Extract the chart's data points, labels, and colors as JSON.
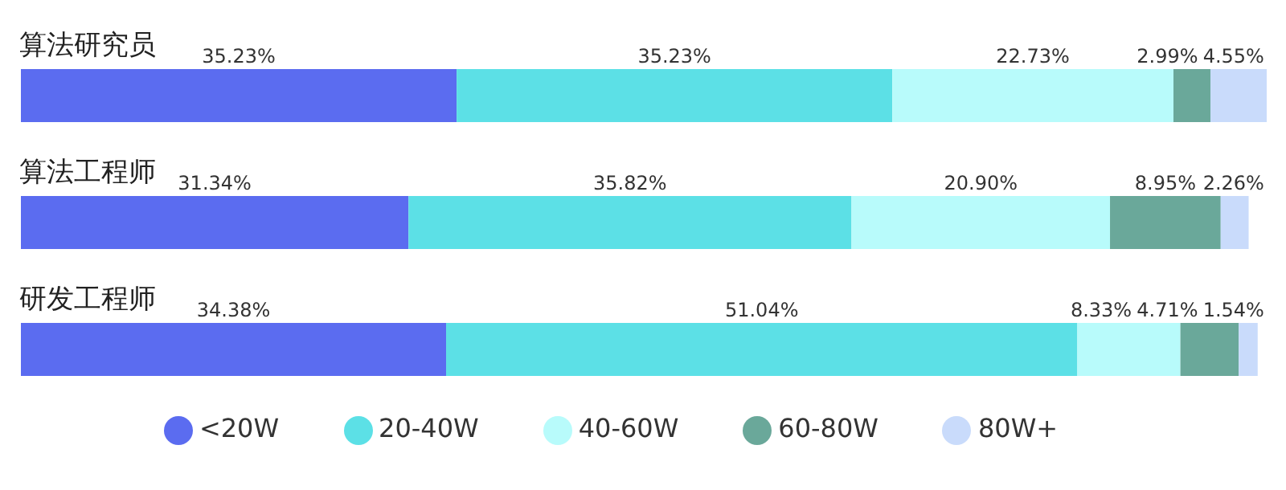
{
  "chart_data": {
    "type": "bar",
    "orientation": "horizontal",
    "stacked": true,
    "legend": "bottom",
    "tick_labels": "y",
    "categories": [
      "算法研究员",
      "算法工程师",
      "研发工程师"
    ],
    "series": [
      {
        "name": "<20W",
        "color": "#5b6cf0",
        "values": [
          35.23,
          31.34,
          34.38
        ],
        "value_labels": [
          "35.23%",
          "31.34%",
          "34.38%"
        ]
      },
      {
        "name": "20-40W",
        "color": "#5ce0e6",
        "values": [
          35.23,
          35.82,
          51.04
        ],
        "value_labels": [
          "35.23%",
          "35.82%",
          "51.04%"
        ]
      },
      {
        "name": "40-60W",
        "color": "#b8fbfb",
        "values": [
          22.73,
          20.9,
          8.33
        ],
        "value_labels": [
          "22.73%",
          "20.90%",
          "8.33%"
        ]
      },
      {
        "name": "60-80W",
        "color": "#6aa89a",
        "values": [
          2.99,
          8.95,
          4.71
        ],
        "value_labels": [
          "2.99%",
          "8.95%",
          "4.71%"
        ]
      },
      {
        "name": "80W+",
        "color": "#c9dbfb",
        "values": [
          4.55,
          2.26,
          1.54
        ],
        "value_labels": [
          "4.55%",
          "2.26%",
          "1.54%"
        ]
      }
    ]
  }
}
